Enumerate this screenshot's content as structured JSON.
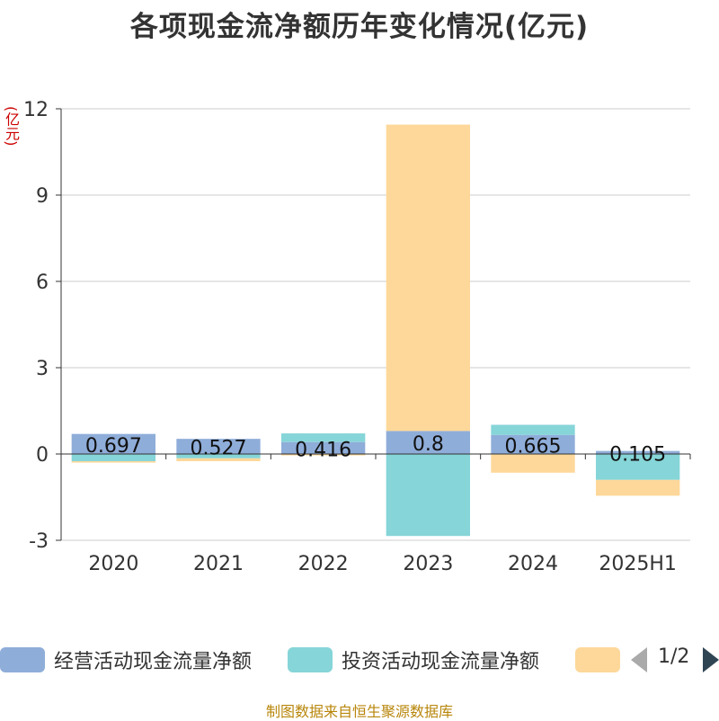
{
  "title": "各项现金流净额历年变化情况(亿元)",
  "unit_label": "(亿元)",
  "source": "制图数据来自恒生聚源数据库",
  "legend": {
    "items": [
      {
        "label": "经营活动现金流量净额",
        "color": "#8fadd9"
      },
      {
        "label": "投资活动现金流量净额",
        "color": "#86d5d8"
      },
      {
        "label": "",
        "color": "#fdd89a"
      }
    ],
    "page_text": "1/2"
  },
  "chart_data": {
    "type": "bar",
    "stacked": true,
    "categories": [
      "2020",
      "2021",
      "2022",
      "2023",
      "2024",
      "2025H1"
    ],
    "series": [
      {
        "name": "经营活动现金流量净额",
        "color": "#8fadd9",
        "values": [
          0.697,
          0.527,
          0.416,
          0.8,
          0.665,
          0.105
        ]
      },
      {
        "name": "投资活动现金流量净额",
        "color": "#86d5d8",
        "values": [
          -0.25,
          -0.15,
          0.3,
          -2.85,
          0.35,
          -0.9
        ]
      },
      {
        "color": "#fdd89a",
        "values": [
          -0.05,
          -0.1,
          -0.05,
          10.65,
          -0.65,
          -0.55
        ]
      }
    ],
    "data_labels": [
      "0.697",
      "0.527",
      "0.416",
      "0.8",
      "0.665",
      "0.105"
    ],
    "ylim": [
      -3,
      12
    ],
    "yticks": [
      -3,
      0,
      3,
      6,
      9,
      12
    ],
    "grid": true,
    "legend_position": "bottom"
  }
}
